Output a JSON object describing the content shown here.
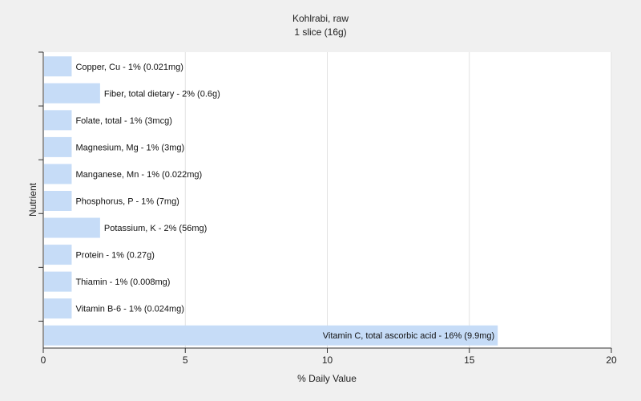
{
  "chart_data": {
    "type": "bar",
    "orientation": "horizontal",
    "title": "Kohlrabi, raw",
    "subtitle": "1 slice (16g)",
    "xlabel": "% Daily Value",
    "ylabel": "Nutrient",
    "xlim": [
      0,
      20
    ],
    "xticks": [
      0,
      5,
      10,
      15,
      20
    ],
    "grid": true,
    "bar_color": "#c6dcf7",
    "bars": [
      {
        "label": "Copper, Cu - 1% (0.021mg)",
        "value": 1
      },
      {
        "label": "Fiber, total dietary - 2% (0.6g)",
        "value": 2
      },
      {
        "label": "Folate, total - 1% (3mcg)",
        "value": 1
      },
      {
        "label": "Magnesium, Mg - 1% (3mg)",
        "value": 1
      },
      {
        "label": "Manganese, Mn - 1% (0.022mg)",
        "value": 1
      },
      {
        "label": "Phosphorus, P - 1% (7mg)",
        "value": 1
      },
      {
        "label": "Potassium, K - 2% (56mg)",
        "value": 2
      },
      {
        "label": "Protein - 1% (0.27g)",
        "value": 1
      },
      {
        "label": "Thiamin - 1% (0.008mg)",
        "value": 1
      },
      {
        "label": "Vitamin B-6 - 1% (0.024mg)",
        "value": 1
      },
      {
        "label": "Vitamin C, total ascorbic acid - 16% (9.9mg)",
        "value": 16
      }
    ]
  }
}
